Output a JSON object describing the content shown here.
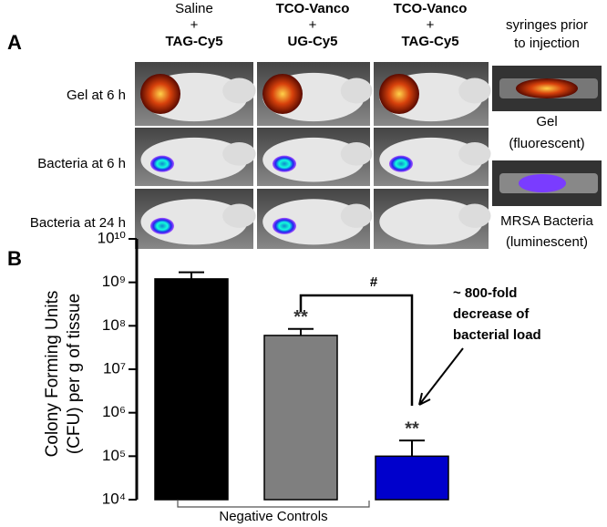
{
  "panel_a": {
    "label": "A",
    "columns": [
      [
        "Saline",
        "+",
        "TAG-Cy5"
      ],
      [
        "TCO-Vanco",
        "+",
        "UG-Cy5"
      ],
      [
        "TCO-Vanco",
        "+",
        "TAG-Cy5"
      ]
    ],
    "syringe_header": [
      "syringes prior",
      "to injection"
    ],
    "rows": [
      "Gel at 6 h",
      "Bacteria at 6 h",
      "Bacteria at 24 h"
    ],
    "syringe_captions": [
      [
        "Gel",
        "(fluorescent)"
      ],
      [
        "MRSA Bacteria",
        "(luminescent)"
      ]
    ]
  },
  "chart_data": {
    "type": "bar",
    "panel_label": "B",
    "log_scale": true,
    "ylabel": [
      "Colony Forming Units",
      "(CFU) per g of tissue"
    ],
    "categories": [
      null,
      null,
      null
    ],
    "values": [
      1200000000,
      60000000,
      100000
    ],
    "errors": [
      500000000,
      25000000,
      130000
    ],
    "colors": [
      "#000000",
      "#7f7f7f",
      "#0000cc"
    ],
    "significance": [
      null,
      "**",
      "**"
    ],
    "comparison_label": "#",
    "callout": [
      "~ 800-fold",
      "decrease of",
      "bacterial load"
    ],
    "group_label": "Negative Controls",
    "ylim": [
      10000,
      10000000000
    ],
    "yticks": [
      {
        "value": 10000,
        "label": "10⁴"
      },
      {
        "value": 100000,
        "label": "10⁵"
      },
      {
        "value": 1000000,
        "label": "10⁶"
      },
      {
        "value": 10000000,
        "label": "10⁷"
      },
      {
        "value": 100000000,
        "label": "10⁸"
      },
      {
        "value": 1000000000,
        "label": "10⁹"
      },
      {
        "value": 10000000000,
        "label": "10¹⁰"
      }
    ]
  }
}
